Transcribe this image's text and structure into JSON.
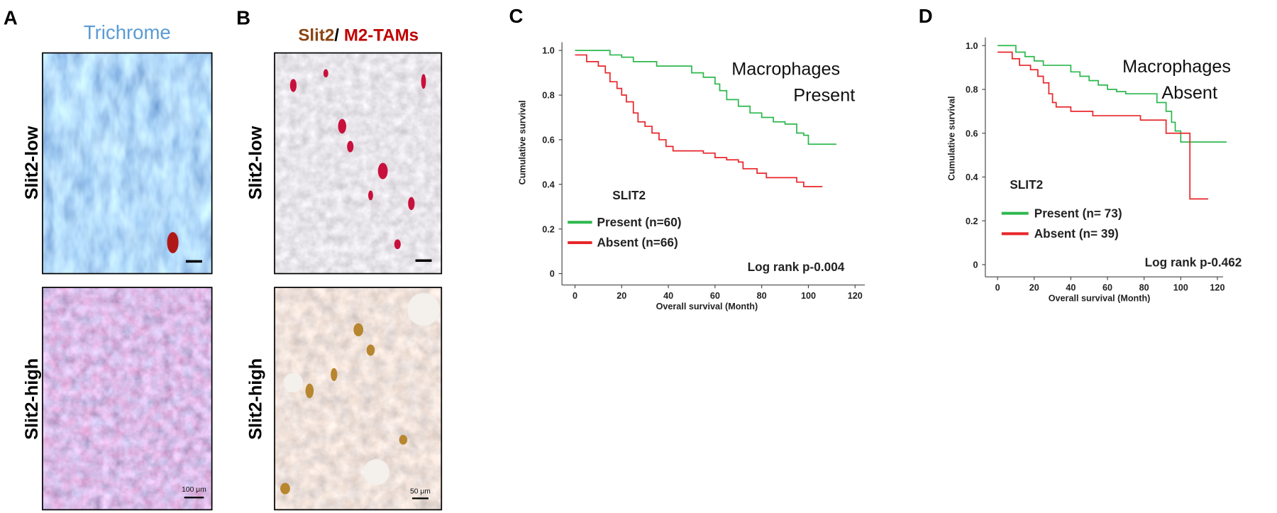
{
  "panels": [
    {
      "label": "A",
      "title": "Trichrome",
      "rows": [
        "Slit2-low",
        "Slit2-high"
      ],
      "scale_bar": "100 μm"
    },
    {
      "label": "B",
      "title_parts": [
        "Slit2",
        "/",
        "M2-TAMs"
      ],
      "rows": [
        "Slit2-low",
        "Slit2-high"
      ],
      "scale_bar": "50 μm"
    }
  ],
  "chart_data": [
    {
      "type": "line",
      "drawstyle": "steps-post",
      "panel_label": "C",
      "annotation": [
        "Macrophages",
        "Present"
      ],
      "xlabel": "Overall survival (Month)",
      "ylabel": "Cumulative survival",
      "legend_title": "SLIT2",
      "stat": "Log rank p-0.004",
      "xlim": [
        0,
        120
      ],
      "xticks": [
        0,
        20,
        40,
        60,
        80,
        100,
        120
      ],
      "ylim": [
        0,
        1
      ],
      "yticks": [
        0,
        0.2,
        0.4,
        0.6,
        0.8,
        {
          "value": 1,
          "label": "1.0"
        }
      ],
      "series": [
        {
          "name": "Present (n=60)",
          "color": "#2db84d",
          "x": [
            0,
            10,
            15,
            20,
            25,
            30,
            35,
            45,
            50,
            55,
            60,
            62,
            65,
            70,
            75,
            80,
            85,
            90,
            95,
            98,
            100,
            112
          ],
          "values": [
            1.0,
            1.0,
            0.98,
            0.97,
            0.95,
            0.95,
            0.93,
            0.93,
            0.9,
            0.88,
            0.85,
            0.82,
            0.78,
            0.75,
            0.72,
            0.7,
            0.68,
            0.67,
            0.63,
            0.62,
            0.58,
            0.58
          ]
        },
        {
          "name": "Absent (n=66)",
          "color": "#e8262a",
          "x": [
            0,
            3,
            5,
            10,
            13,
            15,
            18,
            20,
            22,
            25,
            27,
            30,
            33,
            36,
            39,
            42,
            50,
            55,
            60,
            65,
            70,
            72,
            78,
            82,
            90,
            95,
            98,
            106
          ],
          "values": [
            0.98,
            0.98,
            0.95,
            0.93,
            0.9,
            0.86,
            0.83,
            0.8,
            0.77,
            0.72,
            0.68,
            0.66,
            0.63,
            0.6,
            0.57,
            0.55,
            0.55,
            0.54,
            0.52,
            0.51,
            0.5,
            0.47,
            0.45,
            0.43,
            0.43,
            0.41,
            0.39,
            0.39
          ]
        }
      ]
    },
    {
      "type": "line",
      "drawstyle": "steps-post",
      "panel_label": "D",
      "annotation": [
        "Macrophages",
        "Absent"
      ],
      "xlabel": "Overall survival (Month)",
      "ylabel": "Cumulative survival",
      "legend_title": "SLIT2",
      "stat": "Log rank p-0.462",
      "xlim": [
        0,
        120
      ],
      "xticks": [
        0,
        20,
        40,
        60,
        80,
        100,
        120
      ],
      "ylim": [
        0,
        1
      ],
      "yticks": [
        0,
        0.2,
        0.4,
        0.6,
        0.8,
        {
          "value": 1,
          "label": "1.0"
        }
      ],
      "series": [
        {
          "name": "Present (n= 73)",
          "color": "#2db84d",
          "x": [
            0,
            8,
            10,
            15,
            20,
            25,
            35,
            40,
            45,
            50,
            55,
            60,
            65,
            70,
            85,
            87,
            92,
            95,
            97,
            100,
            125
          ],
          "values": [
            1.0,
            1.0,
            0.97,
            0.95,
            0.93,
            0.91,
            0.91,
            0.88,
            0.86,
            0.84,
            0.82,
            0.8,
            0.79,
            0.78,
            0.78,
            0.74,
            0.7,
            0.65,
            0.61,
            0.56,
            0.56
          ]
        },
        {
          "name": "Absent (n= 39)",
          "color": "#e8262a",
          "x": [
            0,
            5,
            8,
            12,
            18,
            22,
            25,
            28,
            30,
            32,
            38,
            40,
            50,
            52,
            75,
            78,
            90,
            92,
            100,
            105,
            115
          ],
          "values": [
            0.97,
            0.97,
            0.94,
            0.91,
            0.89,
            0.86,
            0.83,
            0.78,
            0.74,
            0.72,
            0.72,
            0.7,
            0.7,
            0.68,
            0.68,
            0.66,
            0.66,
            0.6,
            0.6,
            0.3,
            0.3
          ]
        }
      ]
    }
  ]
}
